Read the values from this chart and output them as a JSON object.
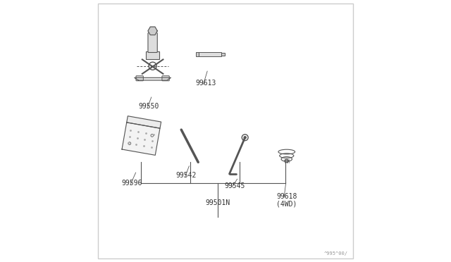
{
  "bg_color": "#ffffff",
  "border_color": "#cccccc",
  "line_color": "#555555",
  "text_color": "#333333",
  "part_color": "#888888",
  "dot_color": "#aaaaaa",
  "title_label": "99501N",
  "watermark": "^995^00/"
}
